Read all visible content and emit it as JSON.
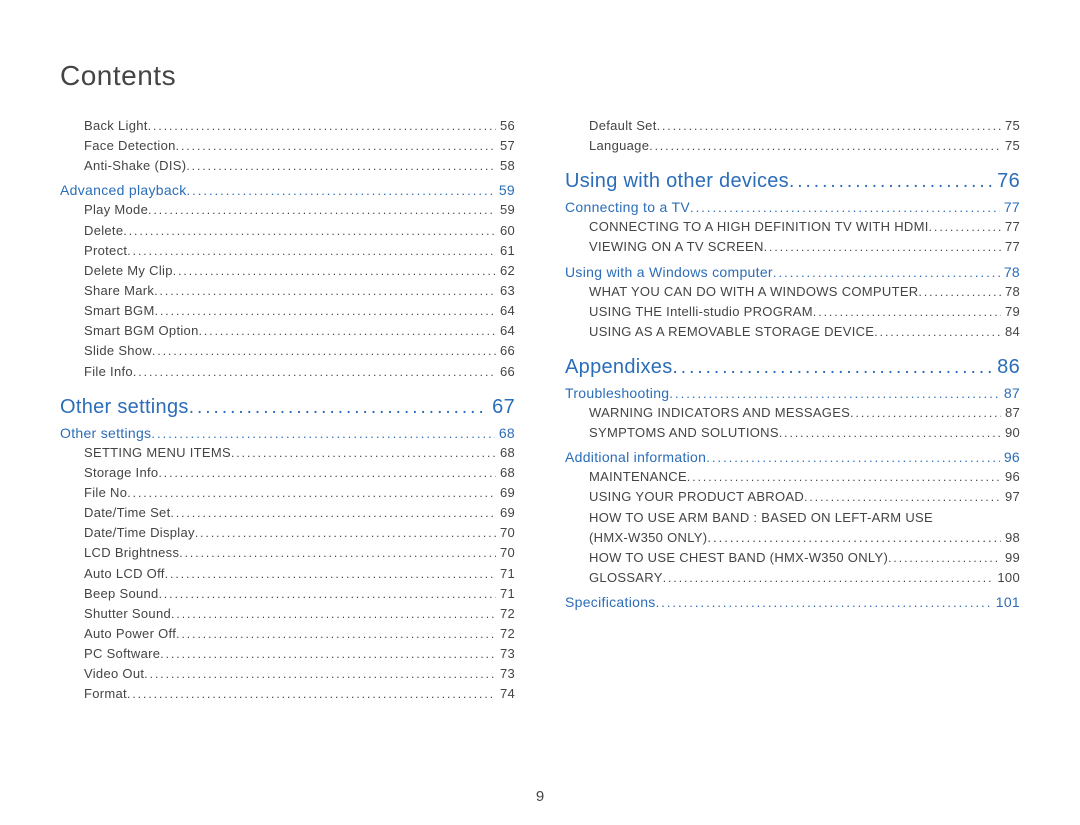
{
  "title": "Contents",
  "pageNumber": "9",
  "colors": {
    "heading": "#2b6db8",
    "body": "#444444",
    "background": "#ffffff"
  },
  "left": {
    "topItems": [
      {
        "label": "Back Light",
        "page": "56"
      },
      {
        "label": "Face Detection",
        "page": "57"
      },
      {
        "label": "Anti-Shake (DIS)",
        "page": "58"
      }
    ],
    "sec1": {
      "label": "Advanced playback",
      "page": "59"
    },
    "sec1Items": [
      {
        "label": "Play Mode",
        "page": "59"
      },
      {
        "label": "Delete",
        "page": "60"
      },
      {
        "label": "Protect",
        "page": "61"
      },
      {
        "label": "Delete My Clip",
        "page": "62"
      },
      {
        "label": "Share Mark",
        "page": "63"
      },
      {
        "label": "Smart BGM",
        "page": "64"
      },
      {
        "label": "Smart BGM Option",
        "page": "64"
      },
      {
        "label": "Slide Show",
        "page": "66"
      },
      {
        "label": "File Info",
        "page": "66"
      }
    ],
    "ch1": {
      "label": "Other settings",
      "page": "67"
    },
    "sec2": {
      "label": "Other settings",
      "page": "68"
    },
    "sec2Items": [
      {
        "label": "SETTING MENU ITEMS",
        "page": "68"
      },
      {
        "label": "Storage Info",
        "page": "68"
      },
      {
        "label": "File No",
        "page": "69"
      },
      {
        "label": "Date/Time Set",
        "page": "69"
      },
      {
        "label": "Date/Time Display",
        "page": "70"
      },
      {
        "label": "LCD Brightness",
        "page": "70"
      },
      {
        "label": "Auto LCD Off",
        "page": "71"
      },
      {
        "label": "Beep Sound",
        "page": "71"
      },
      {
        "label": "Shutter Sound",
        "page": "72"
      },
      {
        "label": "Auto Power Off",
        "page": "72"
      },
      {
        "label": "PC Software",
        "page": "73"
      },
      {
        "label": "Video Out",
        "page": "73"
      },
      {
        "label": "Format",
        "page": "74"
      }
    ]
  },
  "right": {
    "topItems": [
      {
        "label": "Default Set",
        "page": "75"
      },
      {
        "label": "Language",
        "page": "75"
      }
    ],
    "ch1": {
      "label": "Using with other devices",
      "page": "76"
    },
    "sec1": {
      "label": "Connecting to a TV",
      "page": "77"
    },
    "sec1Items": [
      {
        "label": "CONNECTING TO A HIGH DEFINITION TV WITH HDMI",
        "page": "77"
      },
      {
        "label": "VIEWING ON A TV SCREEN",
        "page": "77"
      }
    ],
    "sec2": {
      "label": "Using with a Windows computer",
      "page": "78"
    },
    "sec2Items": [
      {
        "label": "WHAT YOU CAN DO WITH A WINDOWS COMPUTER",
        "page": "78"
      },
      {
        "label": "USING THE Intelli-studio PROGRAM",
        "page": "79"
      },
      {
        "label": "USING AS A REMOVABLE STORAGE DEVICE",
        "page": "84"
      }
    ],
    "ch2": {
      "label": "Appendixes",
      "page": "86"
    },
    "sec3": {
      "label": "Troubleshooting",
      "page": "87"
    },
    "sec3Items": [
      {
        "label": "WARNING INDICATORS AND MESSAGES",
        "page": "87"
      },
      {
        "label": "SYMPTOMS AND SOLUTIONS",
        "page": "90"
      }
    ],
    "sec4": {
      "label": "Additional information",
      "page": "96"
    },
    "sec4Items": [
      {
        "label": "MAINTENANCE",
        "page": "96"
      },
      {
        "label": "USING YOUR PRODUCT ABROAD",
        "page": "97"
      }
    ],
    "wrapItem": {
      "line1": "HOW TO USE ARM BAND : BASED ON LEFT-ARM USE",
      "line2": "(HMX-W350 ONLY)",
      "page": "98"
    },
    "sec4ItemsAfter": [
      {
        "label": "HOW TO USE CHEST BAND (HMX-W350 ONLY)",
        "page": "99"
      },
      {
        "label": "GLOSSARY",
        "page": "100"
      }
    ],
    "sec5": {
      "label": "Specifications",
      "page": "101"
    }
  }
}
